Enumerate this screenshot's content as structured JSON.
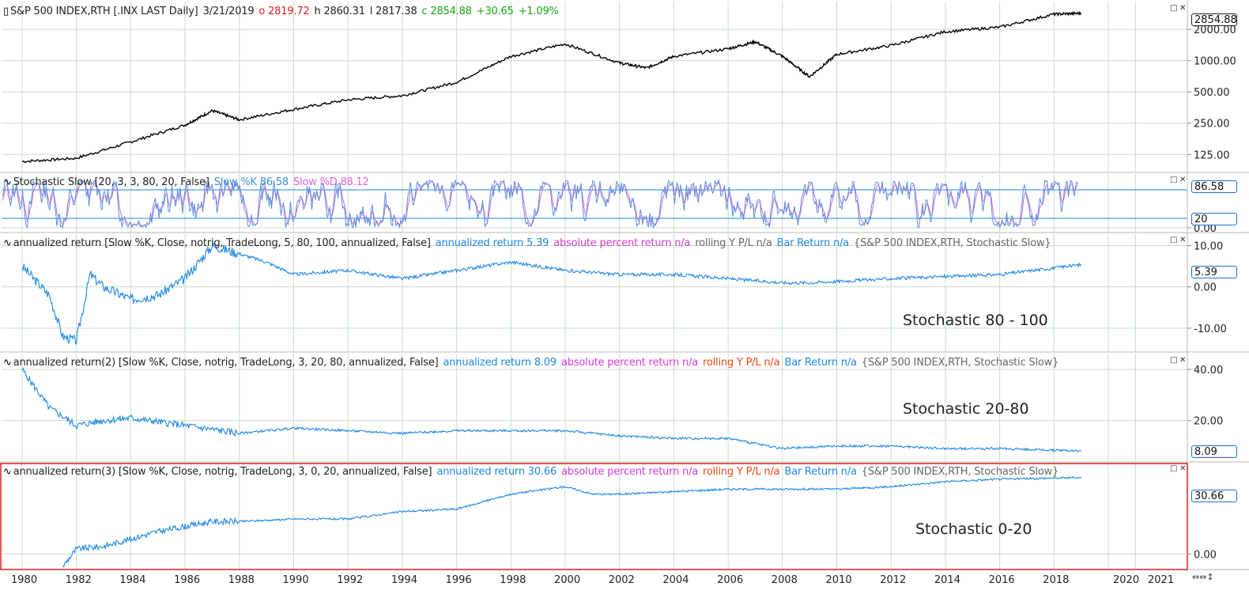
{
  "panes": [
    {
      "id": "price",
      "header": [
        {
          "text": "S&P 500 INDEX,RTH [.INX LAST Daily]",
          "color": "#222222"
        },
        {
          "text": "3/21/2019",
          "color": "#222222"
        },
        {
          "text": "o 2819.72",
          "color": "#e02020"
        },
        {
          "text": "h 2860.31",
          "color": "#222222"
        },
        {
          "text": "l 2817.38",
          "color": "#222222"
        },
        {
          "text": "c 2854.88",
          "color": "#16a516"
        },
        {
          "text": "+30.65",
          "color": "#16a516"
        },
        {
          "text": "+1.09%",
          "color": "#16a516"
        }
      ],
      "last_value_tag": "2854.88",
      "y_ticks": [
        "2000.00",
        "1000.00",
        "500.00",
        "250.00",
        "125.00"
      ]
    },
    {
      "id": "stochastic",
      "header": [
        {
          "text": "Stochastic Slow  [20, 3, 3, 80, 20, False]",
          "color": "#222222"
        },
        {
          "text": "Slow %K 86.58",
          "color": "#3f8ed8"
        },
        {
          "text": "Slow %D 88.12",
          "color": "#d865d8"
        }
      ],
      "value_tags": [
        "86.58",
        "20"
      ],
      "y_ticks": [
        "0.00"
      ]
    },
    {
      "id": "ret1",
      "header": [
        {
          "text": "annualized return  [Slow %K, Close, notrig, TradeLong, 5, 80, 100, annualized, False]",
          "color": "#222222"
        },
        {
          "text": "annualized return 5.39",
          "color": "#1e88e5"
        },
        {
          "text": "absolute percent return n/a",
          "color": "#d63bd6"
        },
        {
          "text": "rolling Y P/L n/a",
          "color": "#666666"
        },
        {
          "text": "Bar Return n/a",
          "color": "#1e88e5"
        },
        {
          "text": "{S&P 500 INDEX,RTH, Stochastic Slow}",
          "color": "#666666"
        }
      ],
      "label": "Stochastic 80 - 100",
      "last_value_tag": "5.39",
      "y_ticks": [
        "10.00",
        "0.00",
        "-10.00"
      ]
    },
    {
      "id": "ret2",
      "header": [
        {
          "text": "annualized return(2)  [Slow %K, Close, notrig, TradeLong, 3, 20, 80, annualized, False]",
          "color": "#222222"
        },
        {
          "text": "annualized return 8.09",
          "color": "#1e88e5"
        },
        {
          "text": "absolute percent return n/a",
          "color": "#d63bd6"
        },
        {
          "text": "rolling Y P/L n/a",
          "color": "#e64a19"
        },
        {
          "text": "Bar Return n/a",
          "color": "#1e88e5"
        },
        {
          "text": "{S&P 500 INDEX,RTH, Stochastic Slow}",
          "color": "#666666"
        }
      ],
      "label": "Stochastic 20-80",
      "last_value_tag": "8.09",
      "y_ticks": [
        "40.00",
        "20.00"
      ]
    },
    {
      "id": "ret3",
      "header": [
        {
          "text": "annualized return(3)  [Slow %K, Close, notrig, TradeLong, 3, 0, 20, annualized, False]",
          "color": "#222222"
        },
        {
          "text": "annualized return 30.66",
          "color": "#1e88e5"
        },
        {
          "text": "absolute percent return n/a",
          "color": "#d63bd6"
        },
        {
          "text": "rolling Y P/L n/a",
          "color": "#e64a19"
        },
        {
          "text": "Bar Return n/a",
          "color": "#1e88e5"
        },
        {
          "text": "{S&P 500 INDEX,RTH, Stochastic Slow}",
          "color": "#666666"
        }
      ],
      "label": "Stochastic 0-20",
      "last_value_tag": "30.66",
      "y_ticks": [
        "0.00"
      ]
    }
  ],
  "x_ticks": [
    "1980",
    "1982",
    "1984",
    "1986",
    "1988",
    "1990",
    "1992",
    "1994",
    "1996",
    "1998",
    "2000",
    "2002",
    "2004",
    "2006",
    "2008",
    "2010",
    "2012",
    "2014",
    "2016",
    "2018",
    "2020",
    "2021"
  ],
  "window_controls": {
    "maximize": "□",
    "close": "✕"
  },
  "colors": {
    "grid": "#c8dcc8",
    "price_line": "#000000",
    "return_line": "#1e88e5",
    "k_line": "#5b8fe0",
    "d_line": "#d868d8",
    "active_border": "#e02020",
    "level_line": "#1e88e5"
  },
  "chart_data": [
    {
      "type": "line",
      "title": "S&P 500 INDEX,RTH [.INX LAST Daily]",
      "y_scale": "log",
      "ylim": [
        100,
        3000
      ],
      "x": [
        "1980",
        "1982",
        "1984",
        "1986",
        "1987",
        "1988",
        "1990",
        "1992",
        "1994",
        "1996",
        "1998",
        "2000",
        "2002",
        "2003",
        "2004",
        "2006",
        "2007",
        "2008",
        "2009",
        "2010",
        "2012",
        "2014",
        "2016",
        "2018",
        "2019"
      ],
      "values": [
        107,
        115,
        165,
        240,
        330,
        270,
        340,
        420,
        460,
        620,
        1100,
        1450,
        950,
        850,
        1100,
        1300,
        1520,
        1100,
        700,
        1150,
        1400,
        1900,
        2100,
        2800,
        2854.88
      ]
    },
    {
      "type": "line",
      "title": "Stochastic Slow [20, 3, 3, 80, 20, False]",
      "ylim": [
        0,
        100
      ],
      "series": [
        {
          "name": "Slow %K",
          "last": 86.58
        },
        {
          "name": "Slow %D",
          "last": 88.12
        }
      ],
      "levels": [
        80,
        20
      ]
    },
    {
      "type": "line",
      "title": "annualized return [5, 80, 100]",
      "ylim": [
        -15,
        12
      ],
      "x": [
        "1980",
        "1981",
        "1981.5",
        "1982",
        "1982.5",
        "1983",
        "1984",
        "1985",
        "1986",
        "1987",
        "1988",
        "1989",
        "1990",
        "1992",
        "1994",
        "1996",
        "1998",
        "2000",
        "2002",
        "2004",
        "2006",
        "2008",
        "2009",
        "2012",
        "2016",
        "2019"
      ],
      "values": [
        5,
        -2,
        -12,
        -13,
        3,
        0,
        -3,
        -2,
        2,
        10,
        8,
        6,
        3,
        4,
        2,
        4,
        6,
        4,
        3,
        3,
        2,
        1,
        1,
        2,
        3,
        5.39
      ]
    },
    {
      "type": "line",
      "title": "annualized return(2) [3, 20, 80]",
      "ylim": [
        5,
        45
      ],
      "x": [
        "1980",
        "1981",
        "1982",
        "1983",
        "1984",
        "1986",
        "1988",
        "1990",
        "1992",
        "1994",
        "1996",
        "1998",
        "2000",
        "2002",
        "2004",
        "2006",
        "2008",
        "2010",
        "2012",
        "2014",
        "2016",
        "2019"
      ],
      "values": [
        40,
        25,
        18,
        20,
        21,
        18,
        15,
        17,
        16,
        15,
        16,
        16,
        16,
        14,
        13,
        13,
        9,
        10,
        10,
        9,
        9,
        8.09
      ]
    },
    {
      "type": "line",
      "title": "annualized return(3) [3, 0, 20]",
      "ylim": [
        -5,
        35
      ],
      "x": [
        "1981.5",
        "1982",
        "1983",
        "1984",
        "1985",
        "1986",
        "1987",
        "1988",
        "1990",
        "1992",
        "1994",
        "1996",
        "1998",
        "2000",
        "2001",
        "2002",
        "2004",
        "2006",
        "2008",
        "2010",
        "2012",
        "2014",
        "2016",
        "2019"
      ],
      "values": [
        -5,
        2,
        3,
        6,
        9,
        11,
        13,
        13,
        14,
        14,
        17,
        18,
        24,
        27,
        24,
        24,
        25,
        26,
        26,
        26,
        27,
        29,
        30,
        30.66
      ]
    }
  ]
}
